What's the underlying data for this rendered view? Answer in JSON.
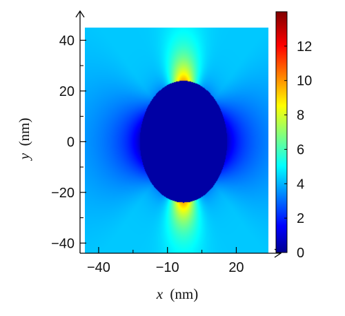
{
  "chart_data": {
    "type": "heatmap",
    "title": "",
    "xlabel": {
      "var": "x",
      "unit": "(nm)"
    },
    "ylabel": {
      "var": "y",
      "unit": "(nm)"
    },
    "xlim": [
      -46,
      34
    ],
    "ylim": [
      -44,
      45
    ],
    "x_ticks": [
      {
        "value": -40,
        "label": "−40"
      },
      {
        "value": -10,
        "label": "−10"
      },
      {
        "value": 20,
        "label": "20"
      }
    ],
    "y_ticks": [
      {
        "value": 40,
        "label": "40"
      },
      {
        "value": 20,
        "label": "20"
      },
      {
        "value": 0,
        "label": "0"
      },
      {
        "value": -20,
        "label": "−20"
      },
      {
        "value": -40,
        "label": "−40"
      }
    ],
    "colorbar": {
      "min": 0,
      "max": 14,
      "colormap": "jet",
      "ticks": [
        {
          "value": 0,
          "label": "0"
        },
        {
          "value": 2,
          "label": "2"
        },
        {
          "value": 4,
          "label": "4"
        },
        {
          "value": 6,
          "label": "6"
        },
        {
          "value": 8,
          "label": "8"
        },
        {
          "value": 10,
          "label": "10"
        },
        {
          "value": 12,
          "label": "12"
        }
      ]
    },
    "field": {
      "description_free": true,
      "particle_center": [
        -3,
        0
      ],
      "particle_semi_axes": [
        19,
        24
      ],
      "inside_value": 0.5,
      "background_value": 4.5,
      "hotspot_value": 8.5,
      "shadow_value": 1.8
    }
  }
}
